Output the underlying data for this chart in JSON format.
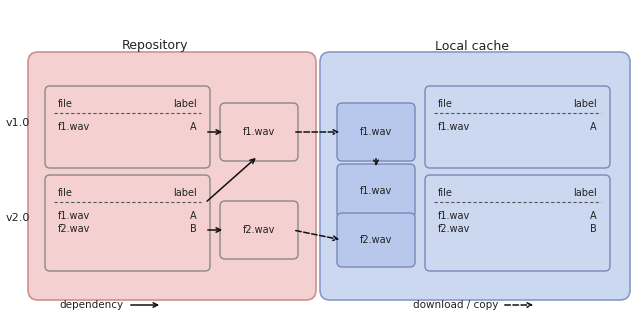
{
  "fig_width": 6.32,
  "fig_height": 3.18,
  "dpi": 100,
  "bg_color": "#ffffff",
  "repo_bg_fill": "#f5d0d0",
  "repo_bg_edge": "#d09090",
  "cache_bg_fill": "#ccd8f0",
  "cache_bg_edge": "#8899cc",
  "box_repo_fill": "#f5d0d0",
  "box_repo_edge": "#888888",
  "box_file_repo_fill": "#f5d0d0",
  "box_file_repo_edge": "#888888",
  "box_cache_fill": "#b8c8ec",
  "box_cache_edge": "#7788bb",
  "box_table_cache_fill": "#ccd8f0",
  "box_table_cache_edge": "#7788bb",
  "title_repo": "Repository",
  "title_cache": "Local cache",
  "label_v1": "v1.0",
  "label_v2": "v2.0",
  "legend_dep": "dependency",
  "legend_dl": "download / copy",
  "arrow_color": "#111111",
  "text_color": "#222222",
  "dash_color": "#555555"
}
